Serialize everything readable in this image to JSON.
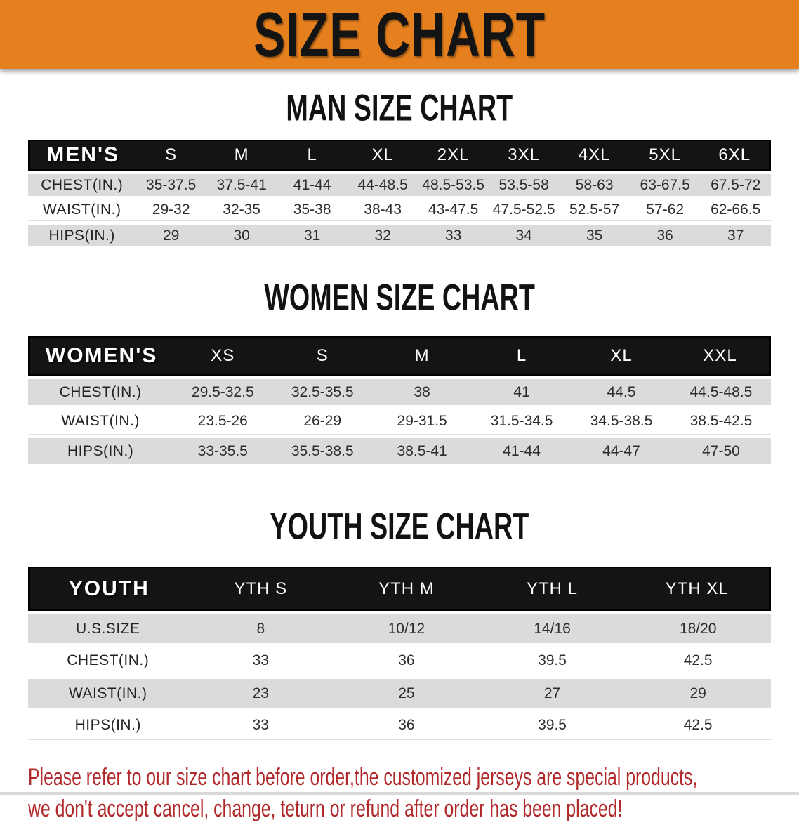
{
  "banner": {
    "title": "SIZE CHART"
  },
  "colors": {
    "banner_bg": "#E6801F",
    "table_header_bg": "#161413",
    "stripe_bg": "#DBDBDB",
    "disclaimer_text": "#B1292B"
  },
  "sections": [
    {
      "id": "men",
      "heading": "MAN SIZE CHART",
      "header_label": "MEN'S",
      "sizes": [
        "S",
        "M",
        "L",
        "XL",
        "2XL",
        "3XL",
        "4XL",
        "5XL",
        "6XL"
      ],
      "rows": [
        {
          "label": "CHEST(IN.)",
          "values": [
            "35-37.5",
            "37.5-41",
            "41-44",
            "44-48.5",
            "48.5-53.5",
            "53.5-58",
            "58-63",
            "63-67.5",
            "67.5-72"
          ]
        },
        {
          "label": "WAIST(IN.)",
          "values": [
            "29-32",
            "32-35",
            "35-38",
            "38-43",
            "43-47.5",
            "47.5-52.5",
            "52.5-57",
            "57-62",
            "62-66.5"
          ]
        },
        {
          "label": "HIPS(IN.)",
          "values": [
            "29",
            "30",
            "31",
            "32",
            "33",
            "34",
            "35",
            "36",
            "37"
          ]
        }
      ]
    },
    {
      "id": "women",
      "heading": "WOMEN SIZE CHART",
      "header_label": "WOMEN'S",
      "sizes": [
        "XS",
        "S",
        "M",
        "L",
        "XL",
        "XXL"
      ],
      "rows": [
        {
          "label": "CHEST(IN.)",
          "values": [
            "29.5-32.5",
            "32.5-35.5",
            "38",
            "41",
            "44.5",
            "44.5-48.5"
          ]
        },
        {
          "label": "WAIST(IN.)",
          "values": [
            "23.5-26",
            "26-29",
            "29-31.5",
            "31.5-34.5",
            "34.5-38.5",
            "38.5-42.5"
          ]
        },
        {
          "label": "HIPS(IN.)",
          "values": [
            "33-35.5",
            "35.5-38.5",
            "38.5-41",
            "41-44",
            "44-47",
            "47-50"
          ]
        }
      ]
    },
    {
      "id": "youth",
      "heading": "YOUTH SIZE CHART",
      "header_label": "YOUTH",
      "sizes": [
        "YTH S",
        "YTH M",
        "YTH L",
        "YTH XL"
      ],
      "rows": [
        {
          "label": "U.S.SIZE",
          "values": [
            "8",
            "10/12",
            "14/16",
            "18/20"
          ]
        },
        {
          "label": "CHEST(IN.)",
          "values": [
            "33",
            "36",
            "39.5",
            "42.5"
          ]
        },
        {
          "label": "WAIST(IN.)",
          "values": [
            "23",
            "25",
            "27",
            "29"
          ]
        },
        {
          "label": "HIPS(IN.)",
          "values": [
            "33",
            "36",
            "39.5",
            "42.5"
          ]
        }
      ]
    }
  ],
  "disclaimer": {
    "line1": "Please refer to our size chart before order,the customized jerseys are special products,",
    "line2": "we don't accept cancel, change, teturn or refund after order has been placed!"
  }
}
